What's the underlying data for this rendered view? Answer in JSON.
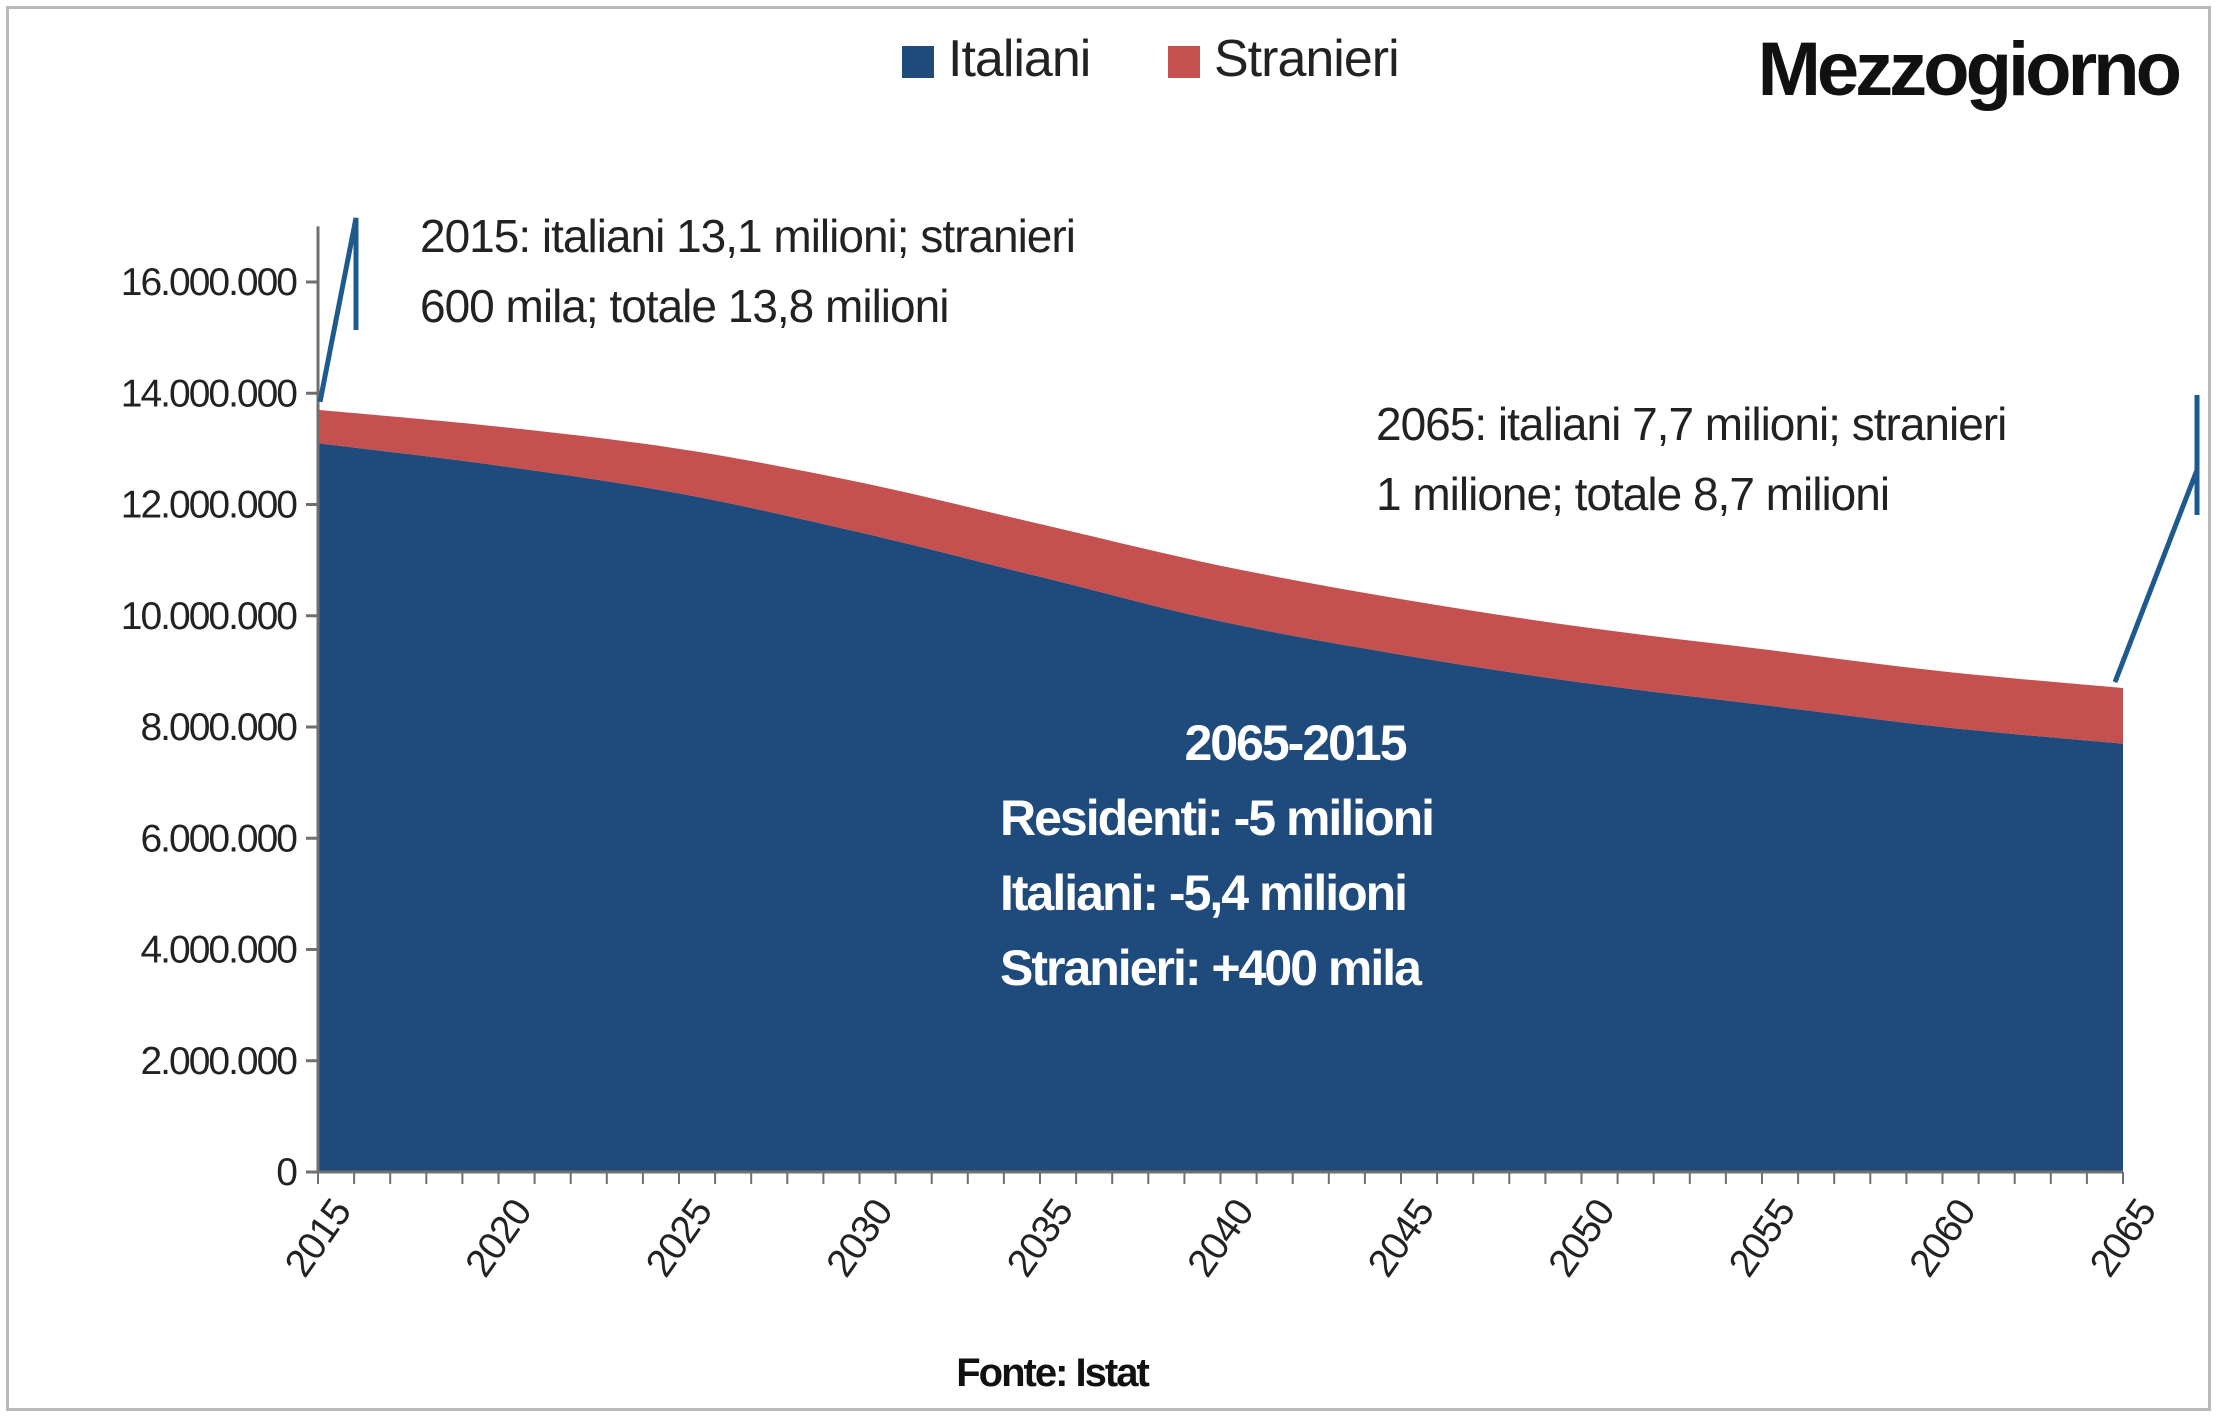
{
  "chart_data": {
    "type": "area",
    "stacked": true,
    "title": "Mezzogiorno",
    "source": "Fonte: Istat",
    "x": [
      2015,
      2020,
      2025,
      2030,
      2035,
      2040,
      2045,
      2050,
      2055,
      2060,
      2065
    ],
    "x_tick_labels": [
      "2015",
      "2020",
      "2025",
      "2030",
      "2035",
      "2040",
      "2045",
      "2050",
      "2055",
      "2060",
      "2065"
    ],
    "series": [
      {
        "name": "Italiani",
        "color": "#1f4a7c",
        "values": [
          13100000,
          12700000,
          12200000,
          11500000,
          10700000,
          9900000,
          9300000,
          8800000,
          8400000,
          8000000,
          7700000
        ]
      },
      {
        "name": "Stranieri",
        "color": "#c4504f",
        "values": [
          600000,
          700000,
          800000,
          900000,
          950000,
          1000000,
          1000000,
          1000000,
          1000000,
          1000000,
          1000000
        ]
      }
    ],
    "ylim": [
      0,
      16000000
    ],
    "y_ticks": [
      0,
      2000000,
      4000000,
      6000000,
      8000000,
      10000000,
      12000000,
      14000000,
      16000000
    ],
    "y_tick_labels": [
      "0",
      "2.000.000",
      "4.000.000",
      "6.000.000",
      "8.000.000",
      "10.000.000",
      "12.000.000",
      "14.000.000",
      "16.000.000"
    ],
    "legend": {
      "position": "top-center",
      "entries": [
        "Italiani",
        "Stranieri"
      ]
    },
    "grid": false,
    "annotations": {
      "start": {
        "year": 2015,
        "lines": [
          "2015: italiani 13,1 milioni; stranieri",
          "600 mila; totale 13,8 milioni"
        ]
      },
      "end": {
        "year": 2065,
        "lines": [
          "2065: italiani 7,7 milioni; stranieri",
          "1 milione; totale 8,7 milioni"
        ]
      },
      "summary": {
        "lines": [
          "2065-2015",
          "Residenti: -5 milioni",
          "Italiani: -5,4 milioni",
          "Stranieri: +400 mila"
        ]
      }
    },
    "callout_color": "#1f5a8f"
  }
}
